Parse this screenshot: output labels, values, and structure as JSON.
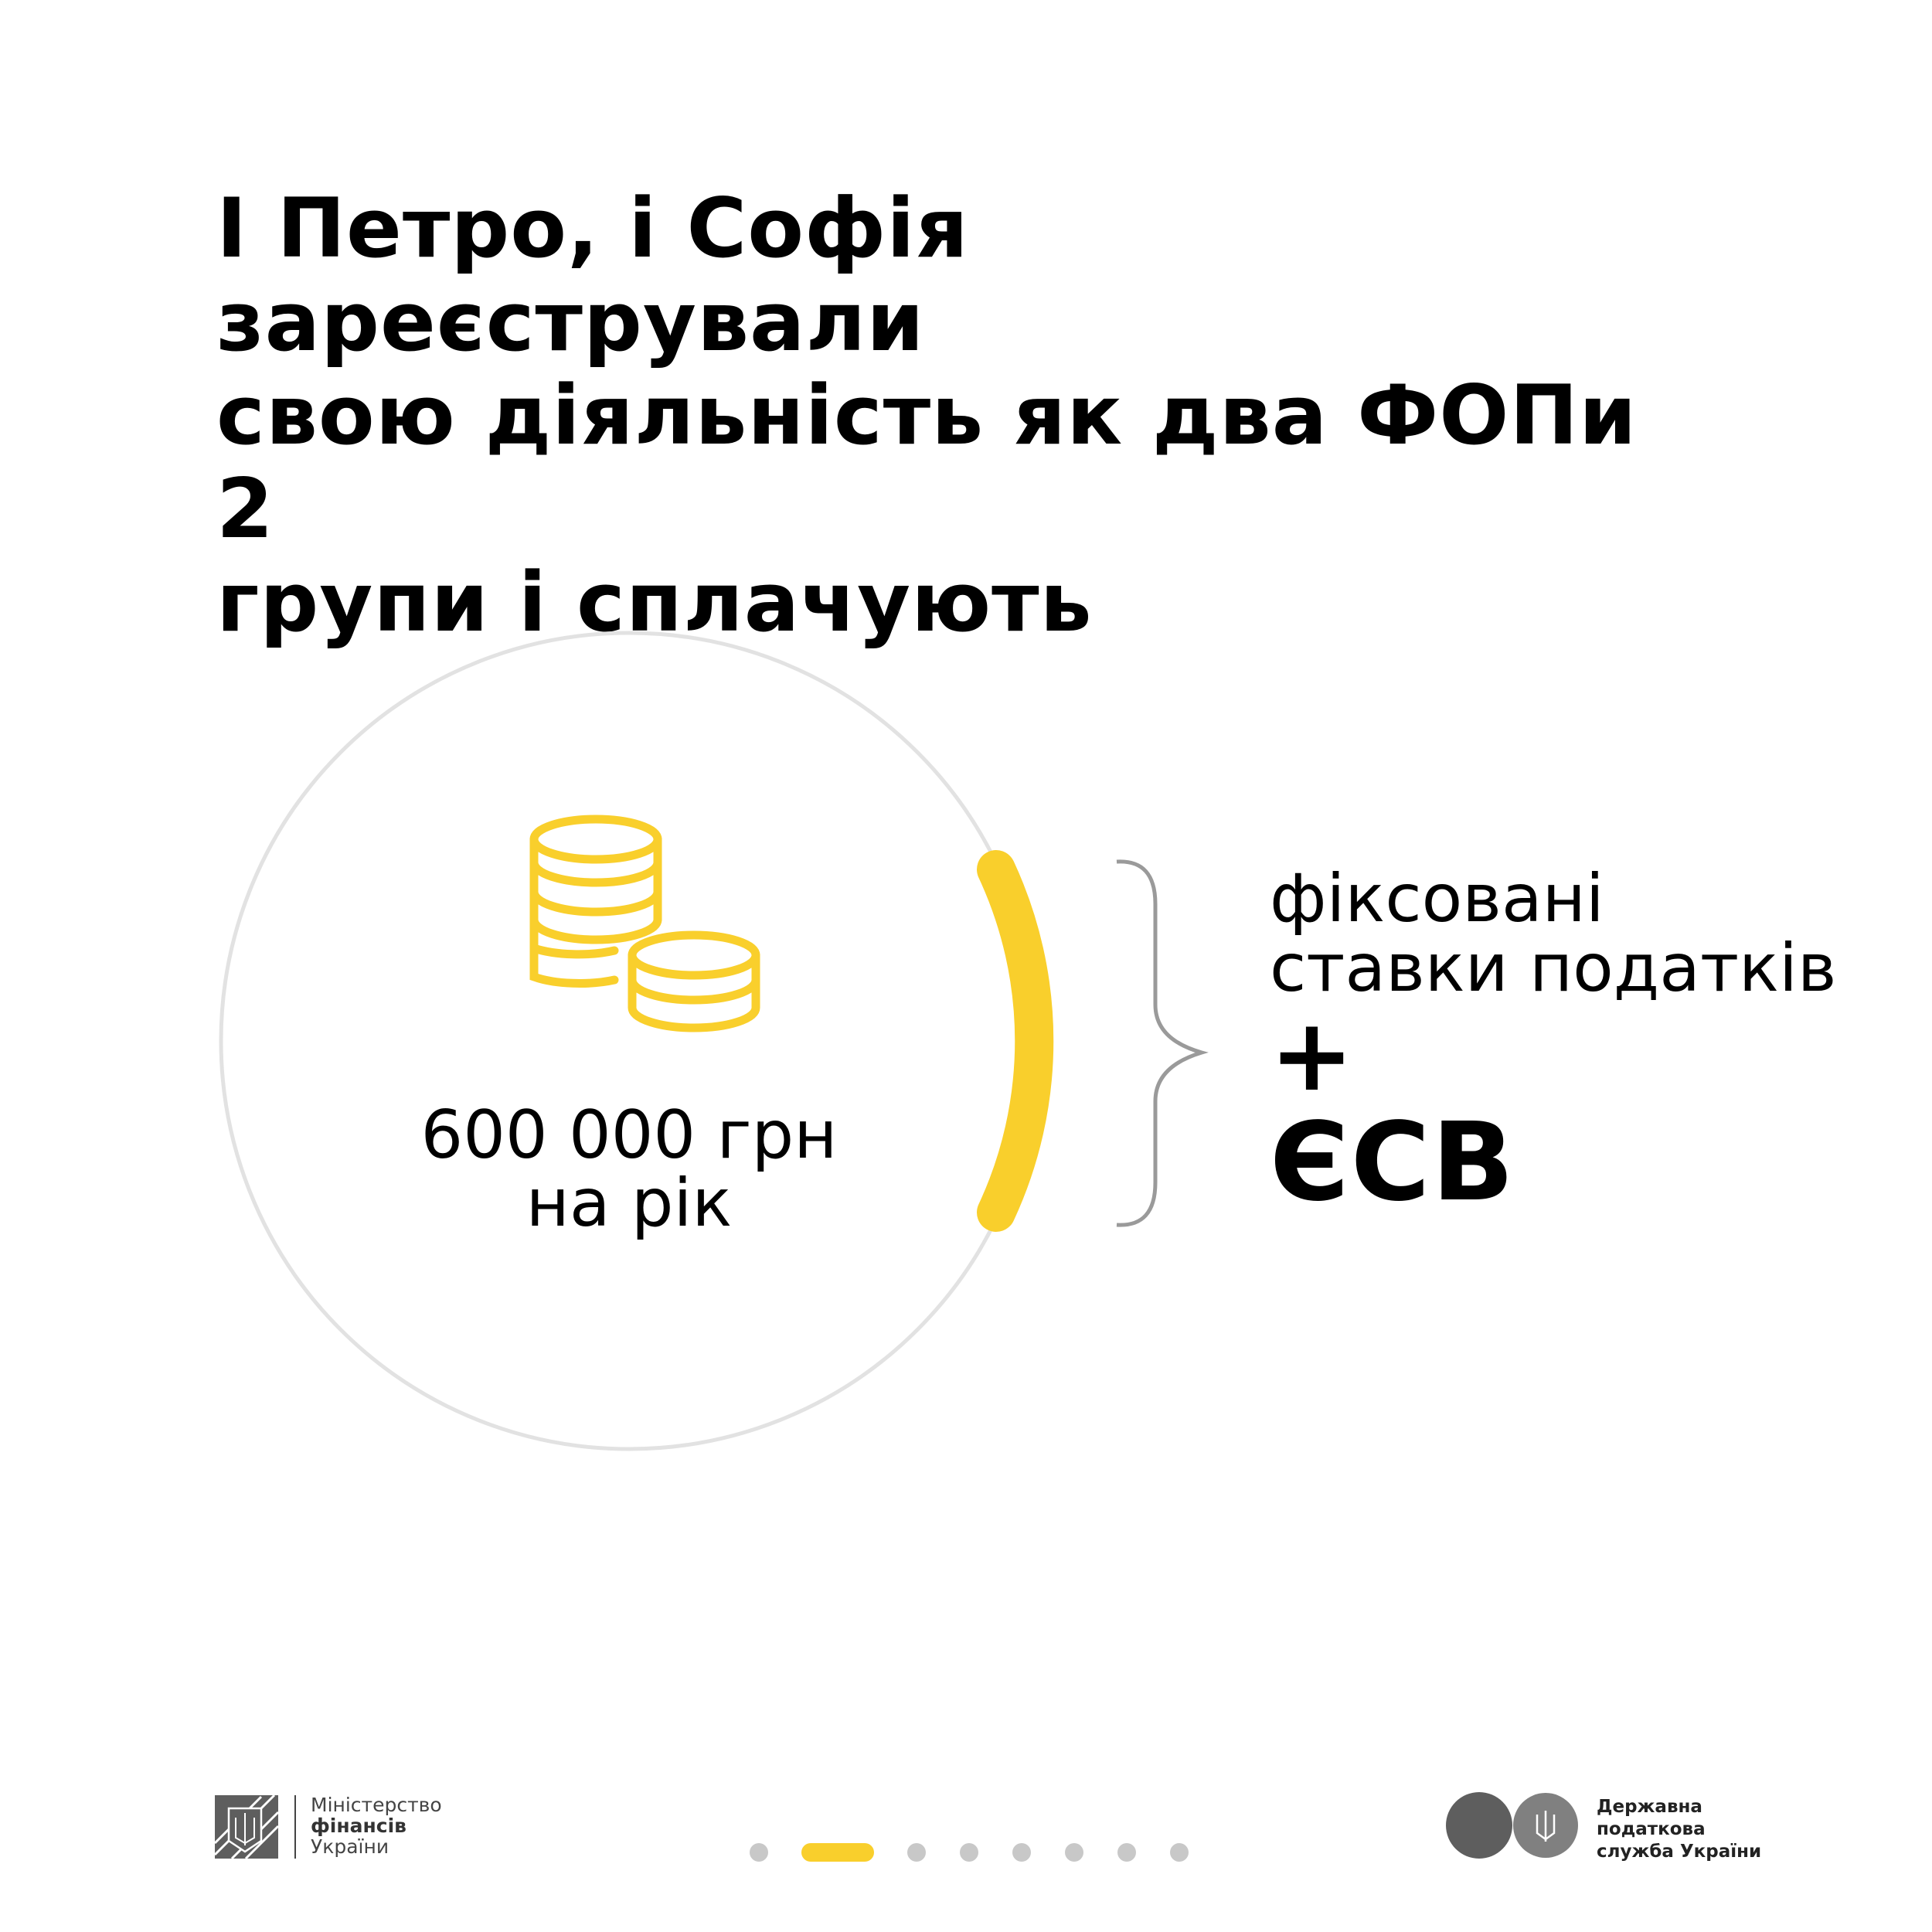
{
  "title": {
    "lines": [
      "І Петро, і Софія зареєстрували",
      "свою діяльність як два ФОПи 2",
      "групи і сплачують"
    ]
  },
  "income": {
    "icon": "coins-stack-icon",
    "amount": "600 000 грн",
    "period": "на рік"
  },
  "taxes": {
    "line1": "фіксовані",
    "line2": "ставки податків",
    "plus": "+",
    "esv": "ЄСВ"
  },
  "colors": {
    "accent": "#f9cf2c",
    "circle": "#e2e2e2",
    "brace": "#9a9a9a",
    "dot_inactive": "#c8c8c8"
  },
  "footer": {
    "minfin": {
      "line1": "Міністерство",
      "line2": "фінансів",
      "line3": "України"
    },
    "dps": {
      "line1": "Державна",
      "line2": "податкова",
      "line3": "служба України"
    }
  },
  "pagination": {
    "total": 8,
    "active_index": 1
  }
}
